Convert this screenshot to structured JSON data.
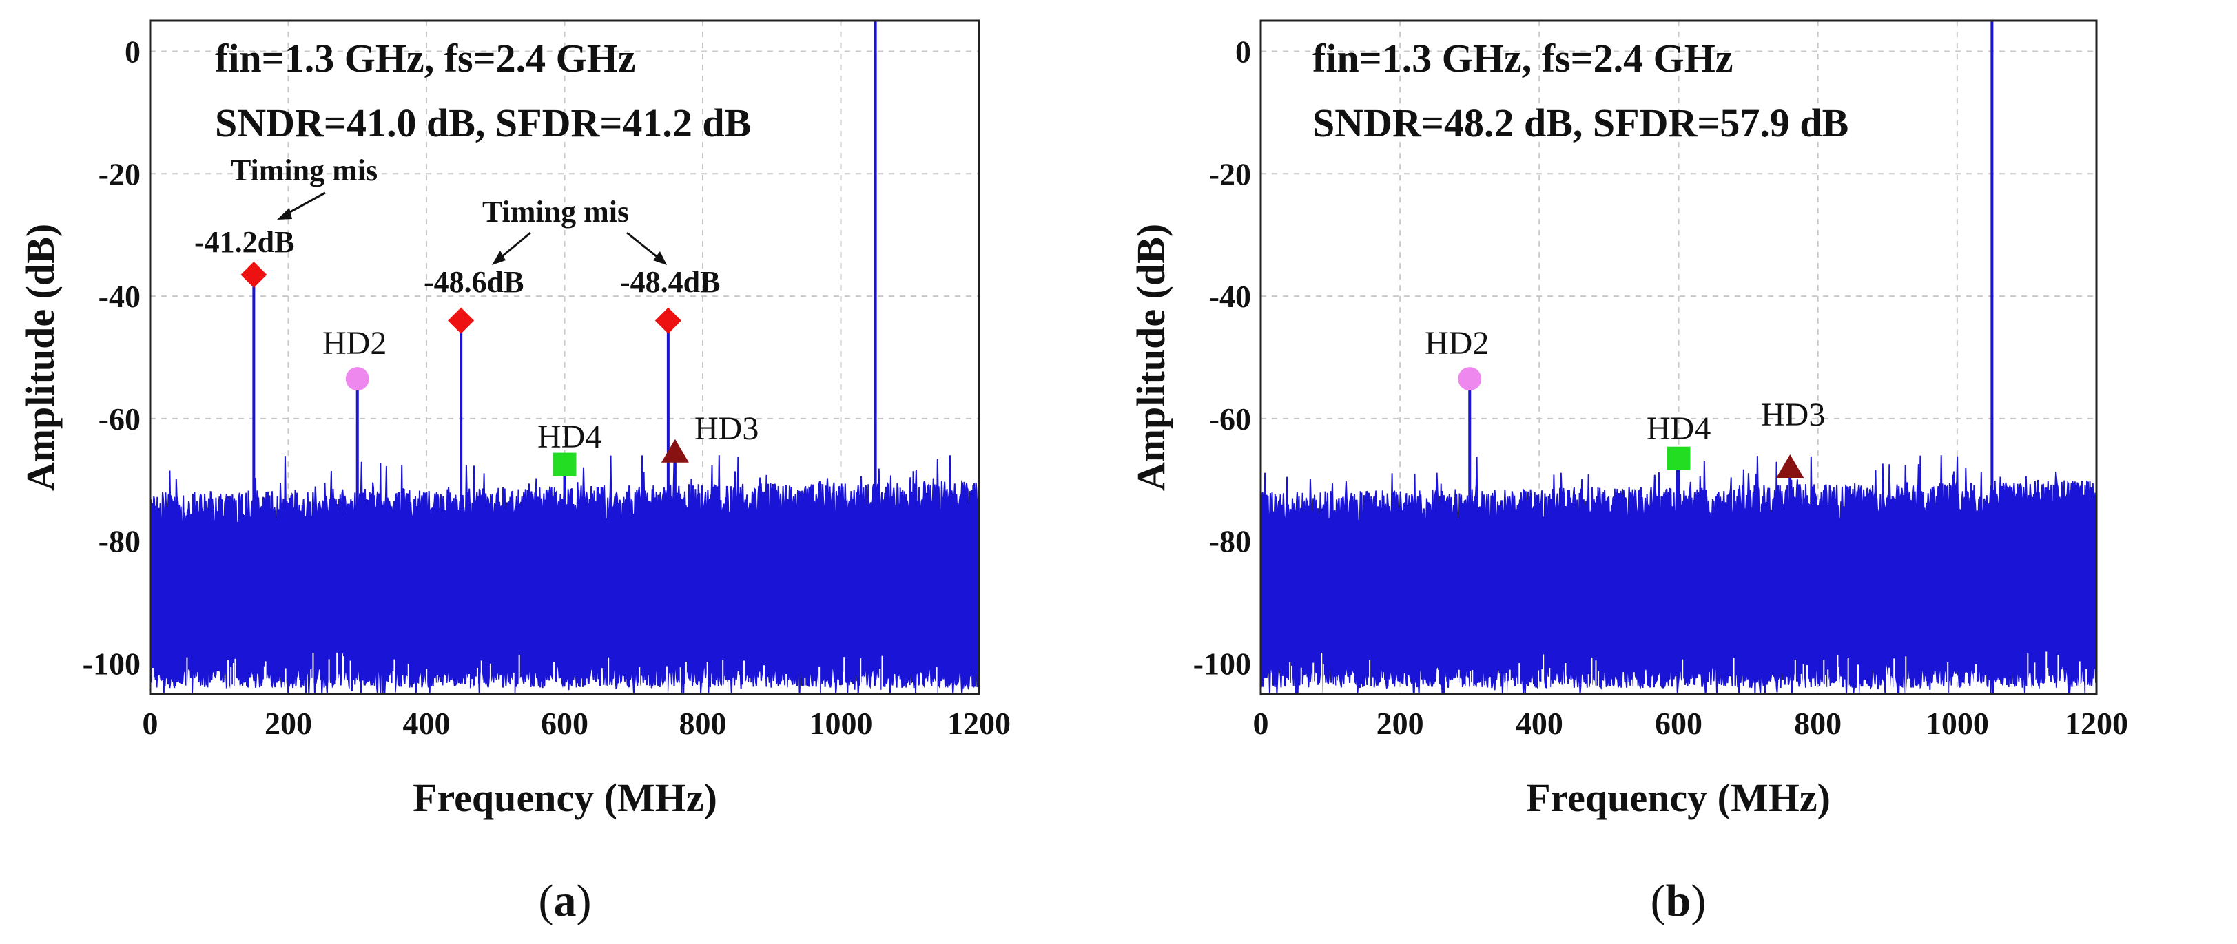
{
  "chart_data": [
    {
      "type": "line",
      "panel_label": "a",
      "xlabel": "Frequency (MHz)",
      "ylabel": "Amplitude (dB)",
      "xlim": [
        0,
        1200
      ],
      "ylim": [
        -105,
        5
      ],
      "xticks": [
        0,
        200,
        400,
        600,
        800,
        1000,
        1200
      ],
      "yticks": [
        0,
        -20,
        -40,
        -60,
        -80,
        -100
      ],
      "grid": true,
      "series_color": "#1a14d6",
      "info_lines": [
        "fin=1.3 GHz, fs=2.4 GHz",
        "SNDR=41.0 dB, SFDR=41.2 dB"
      ],
      "noise_floor_db": [
        -100,
        -80
      ],
      "fundamental": {
        "freq": 1050,
        "amplitude": 5
      },
      "spurs": [
        {
          "name": "timing-mis-1",
          "freq": 150,
          "amplitude": -36.5,
          "marker": "diamond",
          "color": "#ee1111"
        },
        {
          "name": "hd2",
          "freq": 300,
          "amplitude": -53.5,
          "marker": "circle",
          "color": "#ee88ee"
        },
        {
          "name": "timing-mis-2",
          "freq": 450,
          "amplitude": -44,
          "marker": "diamond",
          "color": "#ee1111"
        },
        {
          "name": "hd4",
          "freq": 600,
          "amplitude": -67.5,
          "marker": "square",
          "color": "#22dd22"
        },
        {
          "name": "timing-mis-3",
          "freq": 750,
          "amplitude": -44,
          "marker": "diamond",
          "color": "#ee1111"
        },
        {
          "name": "hd3",
          "freq": 760,
          "amplitude": -65.5,
          "marker": "triangle",
          "color": "#881111"
        }
      ],
      "annotations": {
        "timing_mis_label_1": "Timing mis",
        "timing_mis_label_2": "Timing mis",
        "spur_value_1": "-41.2dB",
        "spur_value_2": "-48.6dB",
        "spur_value_3": "-48.4dB",
        "hd2": "HD2",
        "hd3": "HD3",
        "hd4": "HD4"
      }
    },
    {
      "type": "line",
      "panel_label": "b",
      "xlabel": "Frequency (MHz)",
      "ylabel": "Amplitude (dB)",
      "xlim": [
        0,
        1200
      ],
      "ylim": [
        -105,
        5
      ],
      "xticks": [
        0,
        200,
        400,
        600,
        800,
        1000,
        1200
      ],
      "yticks": [
        0,
        -20,
        -40,
        -60,
        -80,
        -100
      ],
      "grid": true,
      "series_color": "#1a14d6",
      "info_lines": [
        "fin=1.3 GHz, fs=2.4 GHz",
        "SNDR=48.2 dB, SFDR=57.9 dB"
      ],
      "noise_floor_db": [
        -100,
        -80
      ],
      "fundamental": {
        "freq": 1050,
        "amplitude": 5
      },
      "spurs": [
        {
          "name": "hd2",
          "freq": 300,
          "amplitude": -53.5,
          "marker": "circle",
          "color": "#ee88ee"
        },
        {
          "name": "hd4",
          "freq": 600,
          "amplitude": -66.5,
          "marker": "square",
          "color": "#22dd22"
        },
        {
          "name": "hd3",
          "freq": 760,
          "amplitude": -68,
          "marker": "triangle",
          "color": "#881111"
        }
      ],
      "annotations": {
        "hd2": "HD2",
        "hd3": "HD3",
        "hd4": "HD4"
      }
    }
  ]
}
